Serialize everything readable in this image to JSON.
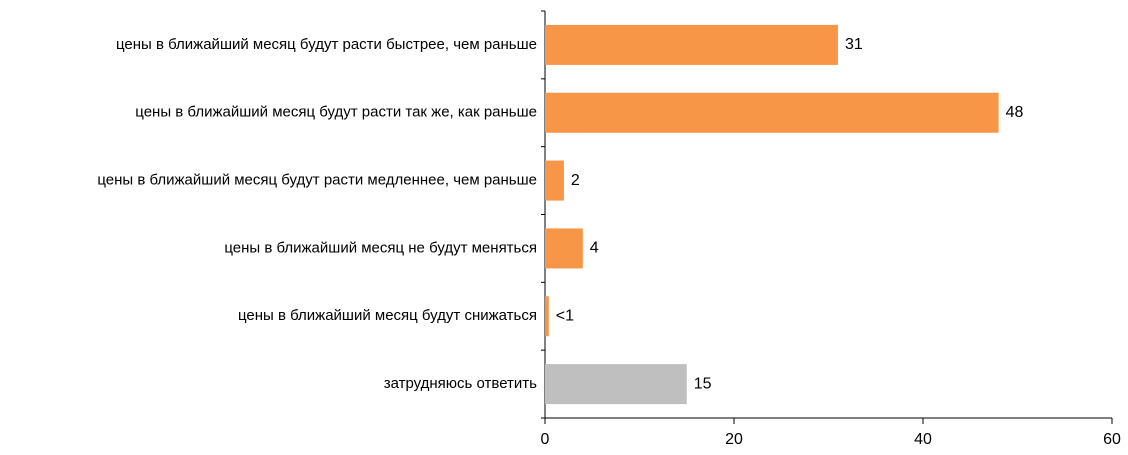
{
  "chart_data": {
    "type": "bar",
    "orientation": "horizontal",
    "categories": [
      "цены в ближайший месяц будут расти быстрее, чем раньше",
      "цены в ближайший месяц будут расти так же, как раньше",
      "цены в ближайший месяц будут расти медленнее, чем раньше",
      "цены в ближайший месяц не будут меняться",
      "цены в ближайший месяц будут снижаться",
      "затрудняюсь ответить"
    ],
    "values": [
      31,
      48,
      2,
      4,
      0.4,
      15
    ],
    "value_labels": [
      "31",
      "48",
      "2",
      "4",
      "<1",
      "15"
    ],
    "colors": [
      "#f79646",
      "#f79646",
      "#f79646",
      "#f79646",
      "#f79646",
      "#bfbfbf"
    ],
    "xlim": [
      0,
      60
    ],
    "xticks": [
      0,
      20,
      40,
      60
    ],
    "grid": false
  }
}
